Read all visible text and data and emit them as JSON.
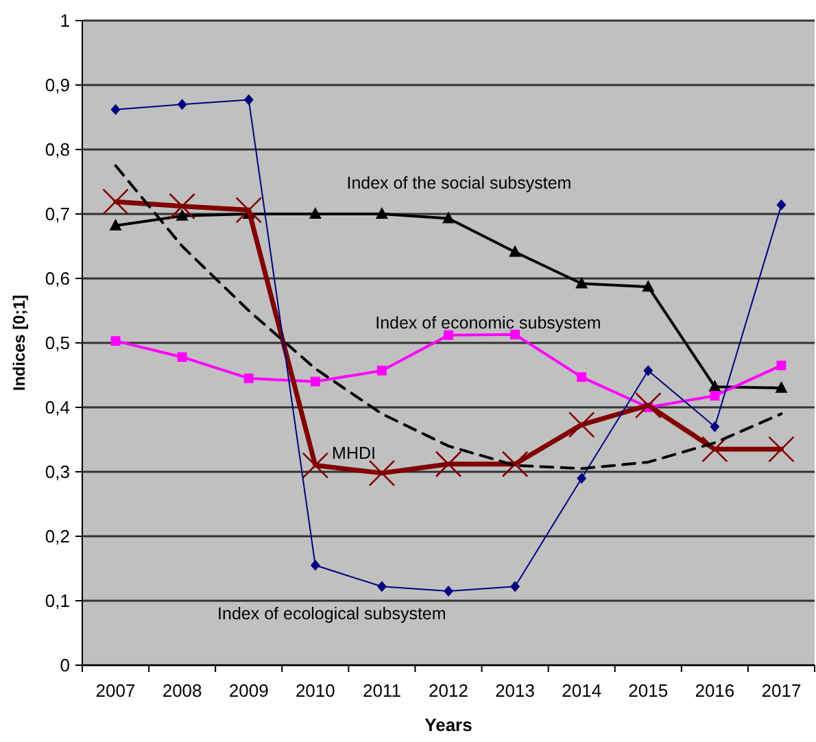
{
  "chart_data": {
    "type": "line",
    "xlabel": "Years",
    "ylabel": "Indices [0;1]",
    "categories": [
      "2007",
      "2008",
      "2009",
      "2010",
      "2011",
      "2012",
      "2013",
      "2014",
      "2015",
      "2016",
      "2017"
    ],
    "ylim": [
      0,
      1
    ],
    "yticks": [
      0,
      {
        "value": 0.1,
        "label": "0,1"
      },
      {
        "value": 0.2,
        "label": "0,2"
      },
      {
        "value": 0.3,
        "label": "0,3"
      },
      {
        "value": 0.4,
        "label": "0,4"
      },
      {
        "value": 0.5,
        "label": "0,5"
      },
      {
        "value": 0.6,
        "label": "0,6"
      },
      {
        "value": 0.7,
        "label": "0,7"
      },
      {
        "value": 0.8,
        "label": "0,8"
      },
      {
        "value": 0.9,
        "label": "0,9"
      },
      1
    ],
    "grid": "y",
    "series": [
      {
        "name": "Index of the social subsystem",
        "color": "#000000",
        "marker": "triangle",
        "values": [
          0.682,
          0.697,
          0.7,
          0.7,
          0.7,
          0.693,
          0.641,
          0.592,
          0.587,
          0.432,
          0.43
        ]
      },
      {
        "name": "Index of economic subsystem",
        "color": "#ff00ff",
        "marker": "square",
        "values": [
          0.503,
          0.478,
          0.445,
          0.44,
          0.457,
          0.512,
          0.513,
          0.447,
          0.4,
          0.418,
          0.465
        ]
      },
      {
        "name": "MHDI",
        "color": "#800000",
        "marker": "cross",
        "values": [
          0.719,
          0.712,
          0.706,
          0.31,
          0.298,
          0.312,
          0.312,
          0.373,
          0.403,
          0.335,
          0.335
        ]
      },
      {
        "name": "Index of ecological subsystem",
        "color": "#000080",
        "marker": "diamond",
        "values": [
          0.862,
          0.87,
          0.877,
          0.155,
          0.122,
          0.115,
          0.122,
          0.29,
          0.457,
          0.37,
          0.714
        ]
      },
      {
        "type": "line",
        "color": "#000000",
        "marker": "none",
        "line_style": "dashed",
        "values": [
          0.775,
          0.65,
          0.55,
          0.46,
          0.39,
          0.34,
          0.31,
          0.305,
          0.315,
          0.345,
          0.39
        ]
      }
    ]
  }
}
